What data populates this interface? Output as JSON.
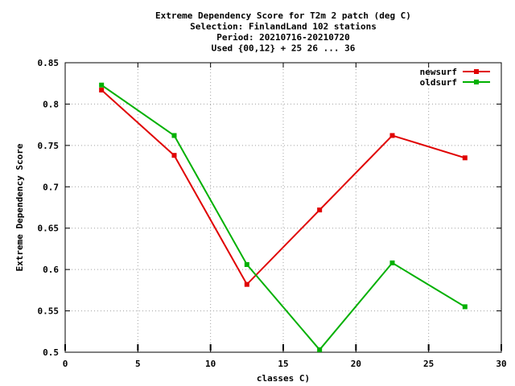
{
  "chart_data": {
    "type": "line",
    "title_lines": [
      "Extreme Dependency Score  for T2m 2 patch (deg C)",
      "Selection: FinlandLand    102 stations",
      "Period: 20210716-20210720",
      "Used {00,12} + 25 26 ... 36"
    ],
    "xlabel": "classes C)",
    "ylabel": "Extreme Dependency Score",
    "xlim": [
      0,
      30
    ],
    "ylim": [
      0.5,
      0.85
    ],
    "xticks": [
      0,
      5,
      10,
      15,
      20,
      25,
      30
    ],
    "yticks": [
      0.5,
      0.55,
      0.6,
      0.65,
      0.7,
      0.75,
      0.8,
      0.85
    ],
    "grid": true,
    "legend_position": "top-right",
    "x": [
      2.5,
      7.5,
      12.5,
      17.5,
      22.5,
      27.5
    ],
    "series": [
      {
        "name": "newsurf",
        "color": "#e00000",
        "values": [
          0.817,
          0.738,
          0.582,
          0.672,
          0.762,
          0.735
        ]
      },
      {
        "name": "oldsurf",
        "color": "#00b000",
        "values": [
          0.823,
          0.762,
          0.606,
          0.503,
          0.608,
          0.555
        ]
      }
    ]
  }
}
